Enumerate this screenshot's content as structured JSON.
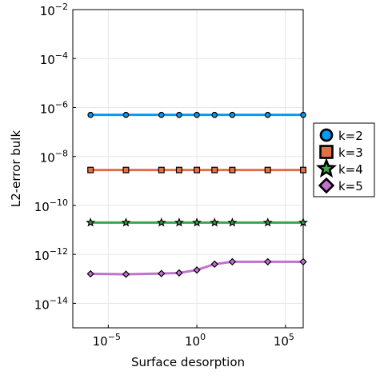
{
  "chart_data": {
    "type": "line",
    "xlabel": "Surface desorption",
    "ylabel": "L2-error bulk",
    "xscale": "log10",
    "yscale": "log10",
    "xlim": [
      1e-07,
      1000000.0
    ],
    "ylim": [
      1e-15,
      0.01
    ],
    "x_ticks": [
      {
        "base": "10",
        "exp": "−5",
        "value": 1e-05
      },
      {
        "base": "10",
        "exp": "0",
        "value": 1
      },
      {
        "base": "10",
        "exp": "5",
        "value": 100000.0
      }
    ],
    "y_ticks": [
      {
        "base": "10",
        "exp": "−2",
        "value": 0.01
      },
      {
        "base": "10",
        "exp": "−4",
        "value": 0.0001
      },
      {
        "base": "10",
        "exp": "−6",
        "value": 1e-06
      },
      {
        "base": "10",
        "exp": "−8",
        "value": 1e-08
      },
      {
        "base": "10",
        "exp": "−10",
        "value": 1e-10
      },
      {
        "base": "10",
        "exp": "−12",
        "value": 1e-12
      },
      {
        "base": "10",
        "exp": "−14",
        "value": 1e-14
      }
    ],
    "grid": true,
    "legend_position": "outside-right",
    "x": [
      1e-06,
      0.0001,
      0.01,
      0.1,
      1,
      10,
      100,
      10000,
      1000000
    ],
    "series": [
      {
        "name": "k=2",
        "marker": "circle",
        "color": "#009af9",
        "values": [
          5e-07,
          5e-07,
          5e-07,
          5e-07,
          5e-07,
          5e-07,
          5e-07,
          5e-07,
          5e-07
        ]
      },
      {
        "name": "k=3",
        "marker": "square",
        "color": "#e26f46",
        "values": [
          2.8e-09,
          2.8e-09,
          2.8e-09,
          2.8e-09,
          2.8e-09,
          2.8e-09,
          2.8e-09,
          2.8e-09,
          2.8e-09
        ]
      },
      {
        "name": "k=4",
        "marker": "star",
        "color": "#3da44d",
        "values": [
          2e-11,
          2e-11,
          2e-11,
          2e-11,
          2e-11,
          2e-11,
          2e-11,
          2e-11,
          2e-11
        ]
      },
      {
        "name": "k=5",
        "marker": "diamond",
        "color": "#c271d2",
        "values": [
          1.6e-13,
          1.55e-13,
          1.65e-13,
          1.75e-13,
          2.3e-13,
          4e-13,
          5e-13,
          5e-13,
          5e-13
        ]
      }
    ]
  }
}
